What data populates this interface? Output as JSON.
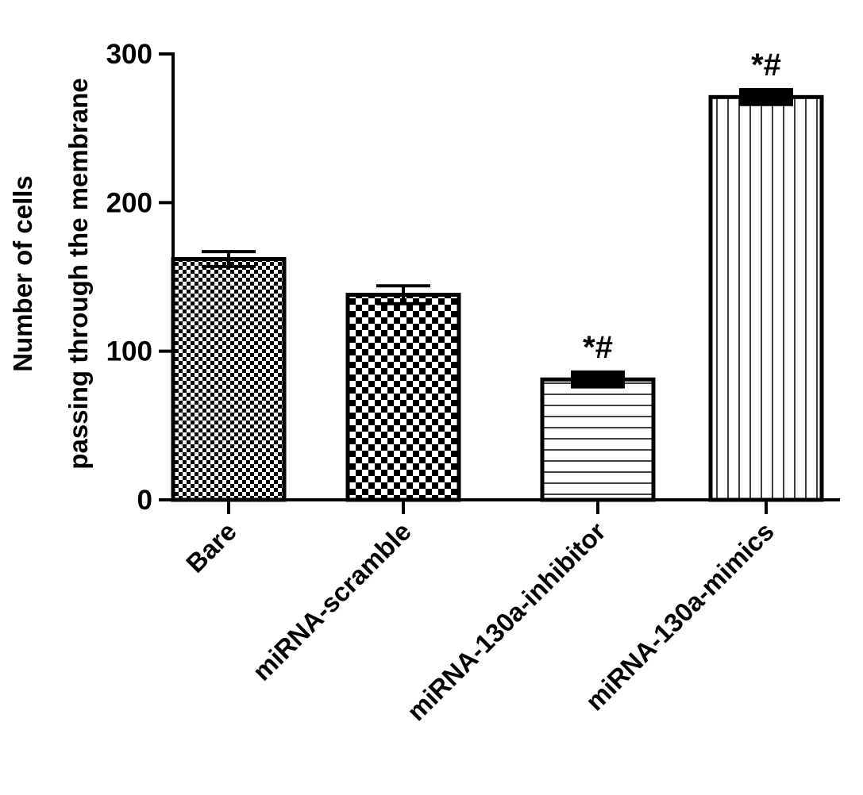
{
  "chart_data": {
    "type": "bar",
    "title": "",
    "xlabel": "",
    "ylabel_lines": [
      "Number of cells",
      "passing through the membrane"
    ],
    "categories": [
      "Bare",
      "miRNA-scramble",
      "miRNA-130a-inhibitor",
      "miRNA-130a-mimics"
    ],
    "values": [
      162,
      138,
      81,
      271
    ],
    "errors": [
      5,
      6,
      5,
      5
    ],
    "annotations": [
      "",
      "",
      "*#",
      "*#"
    ],
    "patterns": [
      "fine-checker",
      "checker",
      "horizontal-lines",
      "vertical-lines"
    ],
    "ylim": [
      0,
      300
    ],
    "yticks": [
      0,
      100,
      200,
      300
    ],
    "grid": false,
    "legend": "none"
  }
}
